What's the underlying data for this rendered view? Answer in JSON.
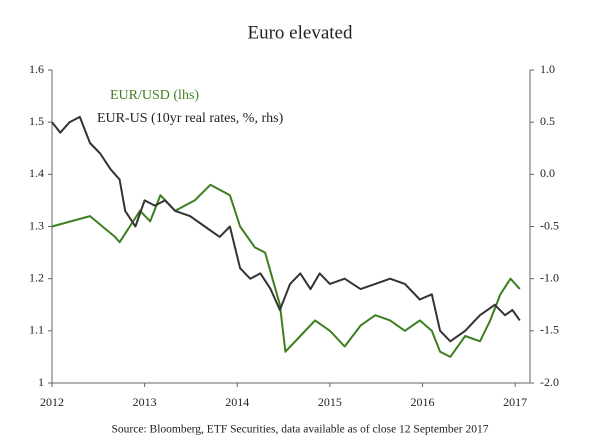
{
  "chart_data": {
    "type": "line",
    "title": "Euro elevated",
    "source": "Source: Bloomberg, ETF Securities, data available as of close 12 September 2017",
    "xlim": [
      2012,
      2017.16
    ],
    "xticks": [
      2012,
      2013,
      2014,
      2015,
      2016,
      2017
    ],
    "ylim": [
      1,
      1.6
    ],
    "yticks": [
      1,
      1.1,
      1.2,
      1.3,
      1.4,
      1.5,
      1.6
    ],
    "y2lim": [
      -2,
      1
    ],
    "y2ticks": [
      {
        "value": 1,
        "label": "1.0"
      },
      0.5,
      {
        "value": 0,
        "label": "0.0"
      },
      -0.5,
      {
        "value": -1,
        "label": "-1.0"
      },
      -1.5,
      {
        "value": -2,
        "label": "-2.0"
      }
    ],
    "series": [
      {
        "name": "EUR/USD (lhs)",
        "color": "#3d7f1f",
        "x": [
          2012.0,
          2012.41,
          2012.68,
          2012.73,
          2012.84,
          2012.95,
          2013.06,
          2013.17,
          2013.33,
          2013.54,
          2013.71,
          2013.92,
          2014.03,
          2014.19,
          2014.3,
          2014.38,
          2014.46,
          2014.52,
          2014.68,
          2014.84,
          2015.0,
          2015.16,
          2015.33,
          2015.49,
          2015.65,
          2015.81,
          2015.97,
          2016.1,
          2016.19,
          2016.3,
          2016.46,
          2016.62,
          2016.73,
          2016.84,
          2016.95,
          2017.05
        ],
        "values": [
          1.3,
          1.32,
          1.28,
          1.27,
          1.3,
          1.33,
          1.31,
          1.36,
          1.33,
          1.35,
          1.38,
          1.36,
          1.3,
          1.26,
          1.25,
          1.2,
          1.15,
          1.06,
          1.09,
          1.12,
          1.1,
          1.07,
          1.11,
          1.13,
          1.12,
          1.1,
          1.12,
          1.1,
          1.06,
          1.05,
          1.09,
          1.08,
          1.12,
          1.17,
          1.2,
          1.18
        ]
      },
      {
        "name": "EUR-US (10yr real rates, %, rhs)",
        "color": "#333333",
        "axis": "y2",
        "x": [
          2012.0,
          2012.09,
          2012.19,
          2012.3,
          2012.41,
          2012.52,
          2012.63,
          2012.73,
          2012.79,
          2012.9,
          2013.0,
          2013.11,
          2013.22,
          2013.33,
          2013.49,
          2013.65,
          2013.81,
          2013.92,
          2014.03,
          2014.14,
          2014.25,
          2014.36,
          2014.46,
          2014.57,
          2014.68,
          2014.79,
          2014.89,
          2015.0,
          2015.16,
          2015.33,
          2015.49,
          2015.65,
          2015.81,
          2015.97,
          2016.1,
          2016.19,
          2016.3,
          2016.46,
          2016.62,
          2016.78,
          2016.89,
          2016.97,
          2017.05
        ],
        "values": [
          0.5,
          0.4,
          0.5,
          0.55,
          0.3,
          0.2,
          0.05,
          -0.05,
          -0.35,
          -0.5,
          -0.25,
          -0.3,
          -0.25,
          -0.35,
          -0.4,
          -0.5,
          -0.6,
          -0.5,
          -0.9,
          -1.0,
          -0.95,
          -1.1,
          -1.3,
          -1.05,
          -0.95,
          -1.1,
          -0.95,
          -1.05,
          -1.0,
          -1.1,
          -1.05,
          -1.0,
          -1.05,
          -1.2,
          -1.15,
          -1.5,
          -1.6,
          -1.5,
          -1.35,
          -1.25,
          -1.35,
          -1.3,
          -1.4
        ]
      }
    ]
  }
}
